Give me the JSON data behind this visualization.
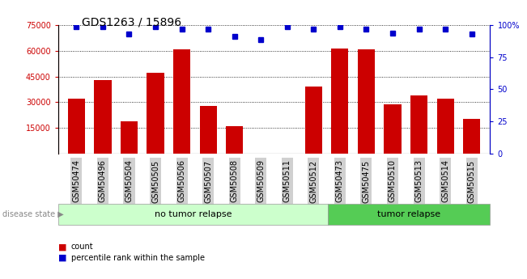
{
  "title": "GDS1263 / 15896",
  "samples": [
    "GSM50474",
    "GSM50496",
    "GSM50504",
    "GSM50505",
    "GSM50506",
    "GSM50507",
    "GSM50508",
    "GSM50509",
    "GSM50511",
    "GSM50512",
    "GSM50473",
    "GSM50475",
    "GSM50510",
    "GSM50513",
    "GSM50514",
    "GSM50515"
  ],
  "counts": [
    32000,
    43000,
    19000,
    47000,
    61000,
    28000,
    16000,
    0,
    0,
    39000,
    61500,
    61000,
    28500,
    34000,
    32000,
    20000
  ],
  "percentiles": [
    99,
    99,
    93,
    99,
    97,
    97,
    91,
    89,
    99,
    97,
    99,
    97,
    94,
    97,
    97,
    93
  ],
  "group1_label": "no tumor relapse",
  "group2_label": "tumor relapse",
  "group1_count": 10,
  "group2_count": 6,
  "disease_state_label": "disease state",
  "bar_color": "#cc0000",
  "dot_color": "#0000cc",
  "ylim_left": [
    0,
    75000
  ],
  "ylim_right": [
    0,
    100
  ],
  "yticks_left": [
    15000,
    30000,
    45000,
    60000,
    75000
  ],
  "yticks_right": [
    0,
    25,
    50,
    75,
    100
  ],
  "legend_count_label": "count",
  "legend_pct_label": "percentile rank within the sample",
  "bg_color_group1": "#ccffcc",
  "bg_color_group2": "#55cc55",
  "tick_label_bg": "#d0d0d0",
  "title_fontsize": 10,
  "tick_fontsize": 7,
  "label_fontsize": 8
}
